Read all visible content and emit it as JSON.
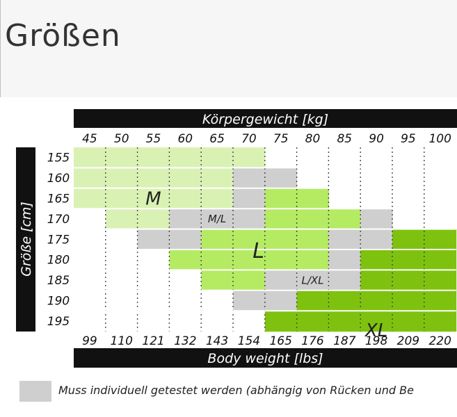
{
  "page": {
    "title": "Größen"
  },
  "colors": {
    "M": "#d9f2b4",
    "L": "#b5eb63",
    "XL": "#7ec20f",
    "overlap": "#cfcfcf",
    "header_bg": "#111111",
    "header_text": "#ffffff"
  },
  "chart_data": {
    "type": "heatmap",
    "title": "",
    "x_top_label": "Körpergewicht [kg]",
    "x_bottom_label": "Body weight [lbs]",
    "y_label": "Größe [cm]",
    "x_kg": [
      "45",
      "50",
      "55",
      "60",
      "65",
      "70",
      "75",
      "80",
      "85",
      "90",
      "95",
      "100"
    ],
    "x_lbs": [
      "99",
      "110",
      "121",
      "132",
      "143",
      "154",
      "165",
      "176",
      "187",
      "198",
      "209",
      "220"
    ],
    "y_cm": [
      "155",
      "160",
      "165",
      "170",
      "175",
      "180",
      "185",
      "190",
      "195"
    ],
    "grid": [
      [
        "M",
        "M",
        "M",
        "M",
        "M",
        "M",
        "",
        "",
        "",
        "",
        "",
        ""
      ],
      [
        "M",
        "M",
        "M",
        "M",
        "M",
        "O",
        "O",
        "",
        "",
        "",
        "",
        ""
      ],
      [
        "M",
        "M",
        "M",
        "M",
        "M",
        "O",
        "L",
        "L",
        "",
        "",
        "",
        ""
      ],
      [
        "",
        "M",
        "M",
        "O",
        "O",
        "O",
        "L",
        "L",
        "L",
        "O",
        "",
        ""
      ],
      [
        "",
        "",
        "O",
        "O",
        "L",
        "L",
        "L",
        "L",
        "O",
        "O",
        "XL",
        "XL"
      ],
      [
        "",
        "",
        "",
        "L",
        "L",
        "L",
        "L",
        "L",
        "O",
        "XL",
        "XL",
        "XL"
      ],
      [
        "",
        "",
        "",
        "",
        "L",
        "L",
        "O",
        "O",
        "O",
        "XL",
        "XL",
        "XL"
      ],
      [
        "",
        "",
        "",
        "",
        "",
        "O",
        "O",
        "XL",
        "XL",
        "XL",
        "XL",
        "XL"
      ],
      [
        "",
        "",
        "",
        "",
        "",
        "",
        "XL",
        "XL",
        "XL",
        "XL",
        "XL",
        "XL"
      ]
    ],
    "zone_labels": [
      {
        "text": "M",
        "kg": "55",
        "cm": "165"
      },
      {
        "text": "M/L",
        "kg": "65",
        "cm": "170"
      },
      {
        "text": "L",
        "kg": "70",
        "cm": "175"
      },
      {
        "text": "L/XL",
        "kg": "80",
        "cm": "185"
      },
      {
        "text": "XL",
        "kg": "90",
        "cm": "190"
      }
    ],
    "legend": [
      {
        "key": "O",
        "label": "Muss individuell getestet werden (abhängig von Rücken und Be"
      }
    ]
  }
}
